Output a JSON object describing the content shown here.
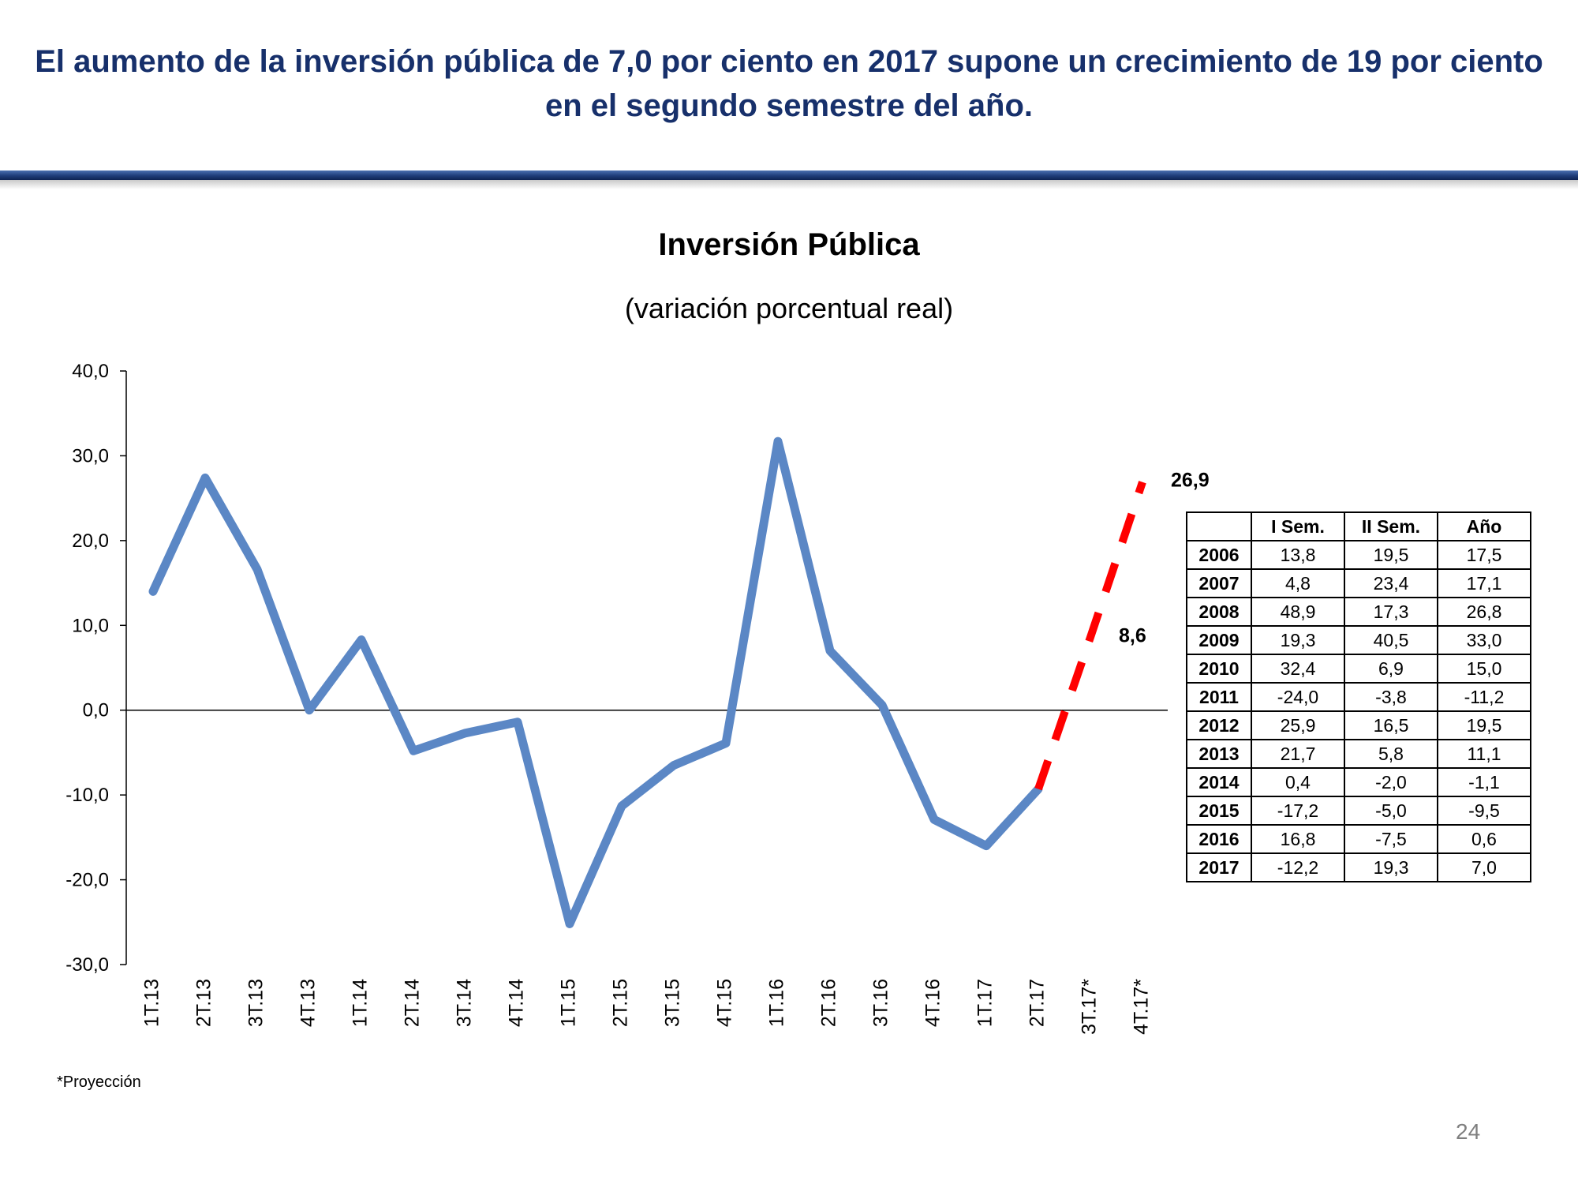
{
  "headline": "El aumento de la inversión pública de 7,0 por ciento en 2017 supone un crecimiento de 19 por ciento en el segundo semestre del año.",
  "footnote": "*Proyección",
  "page_number": "24",
  "colors": {
    "headline": "#17306b",
    "series": "#5b87c5",
    "projection": "#ff0000"
  },
  "chart_data": {
    "type": "line",
    "title": "Inversión Pública",
    "subtitle": "(variación porcentual real)",
    "ylim": [
      -30,
      40
    ],
    "yticks": [
      "40,0",
      "30,0",
      "20,0",
      "10,0",
      "0,0",
      "-10,0",
      "-20,0",
      "-30,0"
    ],
    "ytick_values": [
      40,
      30,
      20,
      10,
      0,
      -10,
      -20,
      -30
    ],
    "categories": [
      "1T.13",
      "2T.13",
      "3T.13",
      "4T.13",
      "1T.14",
      "2T.14",
      "3T.14",
      "4T.14",
      "1T.15",
      "2T.15",
      "3T.15",
      "4T.15",
      "1T.16",
      "2T.16",
      "3T.16",
      "4T.16",
      "1T.17",
      "2T.17",
      "3T.17*",
      "4T.17*"
    ],
    "series": [
      {
        "name": "",
        "values": [
          14.0,
          27.4,
          16.6,
          0.0,
          8.3,
          -4.8,
          -2.7,
          -1.4,
          -25.2,
          -11.3,
          -6.5,
          -3.9,
          31.7,
          7.0,
          0.6,
          -12.9,
          -16.0,
          -9.3,
          null,
          null
        ]
      },
      {
        "name": "Proyección",
        "values": [
          null,
          null,
          null,
          null,
          null,
          null,
          null,
          null,
          null,
          null,
          null,
          null,
          null,
          null,
          null,
          null,
          null,
          -9.3,
          8.6,
          26.9
        ]
      }
    ],
    "annotations": [
      {
        "label": "8,6",
        "x": "3T.17*",
        "y": 8.6
      },
      {
        "label": "26,9",
        "x": "4T.17*",
        "y": 26.9
      }
    ],
    "grid": false,
    "table": {
      "headers": [
        "",
        "I Sem.",
        "II Sem.",
        "Año"
      ],
      "rows": [
        [
          "2006",
          "13,8",
          "19,5",
          "17,5"
        ],
        [
          "2007",
          "4,8",
          "23,4",
          "17,1"
        ],
        [
          "2008",
          "48,9",
          "17,3",
          "26,8"
        ],
        [
          "2009",
          "19,3",
          "40,5",
          "33,0"
        ],
        [
          "2010",
          "32,4",
          "6,9",
          "15,0"
        ],
        [
          "2011",
          "-24,0",
          "-3,8",
          "-11,2"
        ],
        [
          "2012",
          "25,9",
          "16,5",
          "19,5"
        ],
        [
          "2013",
          "21,7",
          "5,8",
          "11,1"
        ],
        [
          "2014",
          "0,4",
          "-2,0",
          "-1,1"
        ],
        [
          "2015",
          "-17,2",
          "-5,0",
          "-9,5"
        ],
        [
          "2016",
          "16,8",
          "-7,5",
          "0,6"
        ],
        [
          "2017",
          "-12,2",
          "19,3",
          "7,0"
        ]
      ]
    }
  }
}
